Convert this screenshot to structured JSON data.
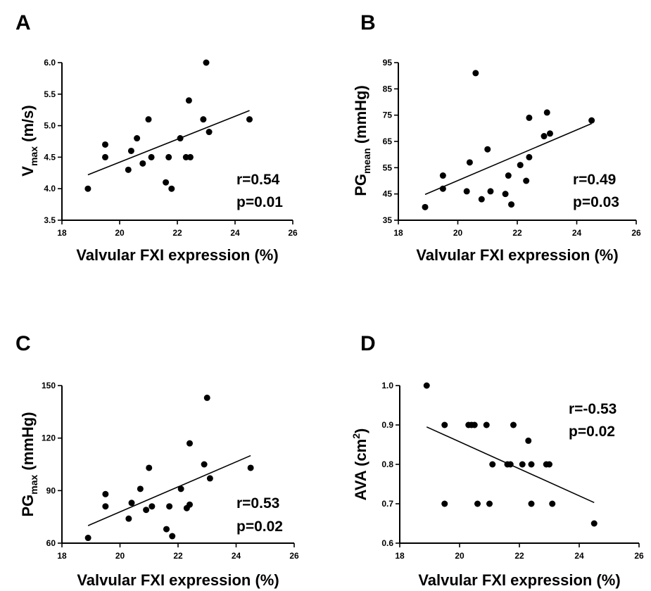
{
  "chart_data": [
    {
      "panel": "A",
      "type": "scatter",
      "xlabel": "Valvular FXI expression (%)",
      "ylabel_main": "V",
      "ylabel_sub": "max",
      "ylabel_sup": "",
      "ylabel_unit": " (m/s)",
      "xlim": [
        18,
        26
      ],
      "ylim": [
        3.5,
        6.0
      ],
      "xticks": [
        18,
        20,
        22,
        24,
        26
      ],
      "yticks": [
        3.5,
        4.0,
        4.5,
        5.0,
        5.5,
        6.0
      ],
      "ytick_labels": [
        "3.5",
        "4.0",
        "4.5",
        "5.0",
        "5.5",
        "6.0"
      ],
      "stat_r": "r=0.54",
      "stat_p": "p=0.01",
      "fit": {
        "x": [
          18.9,
          24.5
        ],
        "y": [
          4.22,
          5.24
        ]
      },
      "points": [
        {
          "x": 18.9,
          "y": 4.0
        },
        {
          "x": 19.5,
          "y": 4.7
        },
        {
          "x": 19.5,
          "y": 4.5
        },
        {
          "x": 20.3,
          "y": 4.3
        },
        {
          "x": 20.4,
          "y": 4.6
        },
        {
          "x": 20.6,
          "y": 4.8
        },
        {
          "x": 20.8,
          "y": 4.4
        },
        {
          "x": 21.0,
          "y": 5.1
        },
        {
          "x": 21.1,
          "y": 4.5
        },
        {
          "x": 21.6,
          "y": 4.1
        },
        {
          "x": 21.7,
          "y": 4.5
        },
        {
          "x": 21.8,
          "y": 4.0
        },
        {
          "x": 22.1,
          "y": 4.8
        },
        {
          "x": 22.3,
          "y": 4.5
        },
        {
          "x": 22.4,
          "y": 5.4
        },
        {
          "x": 22.45,
          "y": 4.5
        },
        {
          "x": 22.9,
          "y": 5.1
        },
        {
          "x": 23.0,
          "y": 6.0
        },
        {
          "x": 23.1,
          "y": 4.9
        },
        {
          "x": 24.5,
          "y": 5.1
        }
      ]
    },
    {
      "panel": "B",
      "type": "scatter",
      "xlabel": "Valvular FXI expression (%)",
      "ylabel_main": "PG",
      "ylabel_sub": "mean",
      "ylabel_sup": "",
      "ylabel_unit": " (mmHg)",
      "xlim": [
        18,
        26
      ],
      "ylim": [
        35,
        95
      ],
      "xticks": [
        18,
        20,
        22,
        24,
        26
      ],
      "yticks": [
        35,
        45,
        55,
        65,
        75,
        85,
        95
      ],
      "ytick_labels": [
        "35",
        "45",
        "55",
        "65",
        "75",
        "85",
        "95"
      ],
      "stat_r": "r=0.49",
      "stat_p": "p=0.03",
      "fit": {
        "x": [
          18.9,
          24.5
        ],
        "y": [
          44.8,
          71.8
        ]
      },
      "points": [
        {
          "x": 18.9,
          "y": 40
        },
        {
          "x": 19.5,
          "y": 52
        },
        {
          "x": 19.5,
          "y": 47
        },
        {
          "x": 20.3,
          "y": 46
        },
        {
          "x": 20.4,
          "y": 57
        },
        {
          "x": 20.6,
          "y": 91
        },
        {
          "x": 20.8,
          "y": 43
        },
        {
          "x": 21.0,
          "y": 62
        },
        {
          "x": 21.1,
          "y": 46
        },
        {
          "x": 21.6,
          "y": 45
        },
        {
          "x": 21.7,
          "y": 52
        },
        {
          "x": 21.8,
          "y": 41
        },
        {
          "x": 22.1,
          "y": 56
        },
        {
          "x": 22.3,
          "y": 50
        },
        {
          "x": 22.4,
          "y": 74
        },
        {
          "x": 22.4,
          "y": 59
        },
        {
          "x": 22.9,
          "y": 67
        },
        {
          "x": 23.0,
          "y": 76
        },
        {
          "x": 23.1,
          "y": 68
        },
        {
          "x": 24.5,
          "y": 73
        }
      ]
    },
    {
      "panel": "C",
      "type": "scatter",
      "xlabel": "Valvular FXI expression (%)",
      "ylabel_main": "PG",
      "ylabel_sub": "max",
      "ylabel_sup": "",
      "ylabel_unit": " (mmHg)",
      "xlim": [
        18,
        26
      ],
      "ylim": [
        60,
        150
      ],
      "xticks": [
        18,
        20,
        22,
        24,
        26
      ],
      "yticks": [
        60,
        90,
        120,
        150
      ],
      "ytick_labels": [
        "60",
        "90",
        "120",
        "150"
      ],
      "stat_r": "r=0.53",
      "stat_p": "p=0.02",
      "fit": {
        "x": [
          18.9,
          24.5
        ],
        "y": [
          70,
          110
        ]
      },
      "points": [
        {
          "x": 18.9,
          "y": 63
        },
        {
          "x": 19.5,
          "y": 88
        },
        {
          "x": 19.5,
          "y": 81
        },
        {
          "x": 20.3,
          "y": 74
        },
        {
          "x": 20.4,
          "y": 83
        },
        {
          "x": 20.7,
          "y": 91
        },
        {
          "x": 20.9,
          "y": 79
        },
        {
          "x": 21.0,
          "y": 103
        },
        {
          "x": 21.1,
          "y": 81
        },
        {
          "x": 21.6,
          "y": 68
        },
        {
          "x": 21.7,
          "y": 81
        },
        {
          "x": 21.8,
          "y": 64
        },
        {
          "x": 22.1,
          "y": 91
        },
        {
          "x": 22.3,
          "y": 80
        },
        {
          "x": 22.4,
          "y": 117
        },
        {
          "x": 22.4,
          "y": 82
        },
        {
          "x": 22.9,
          "y": 105
        },
        {
          "x": 23.0,
          "y": 143
        },
        {
          "x": 23.1,
          "y": 97
        },
        {
          "x": 24.5,
          "y": 103
        }
      ]
    },
    {
      "panel": "D",
      "type": "scatter",
      "xlabel": "Valvular FXI expression (%)",
      "ylabel_main": "AVA",
      "ylabel_sub": "",
      "ylabel_sup": "2",
      "ylabel_unit": " (cm",
      "ylabel_close": ")",
      "xlim": [
        18,
        26
      ],
      "ylim": [
        0.6,
        1.0
      ],
      "xticks": [
        18,
        20,
        22,
        24,
        26
      ],
      "yticks": [
        0.6,
        0.7,
        0.8,
        0.9,
        1.0
      ],
      "ytick_labels": [
        "0.6",
        "0.7",
        "0.8",
        "0.9",
        "1.0"
      ],
      "stat_r": "r=-0.53",
      "stat_p": "p=0.02",
      "fit": {
        "x": [
          18.9,
          24.5
        ],
        "y": [
          0.895,
          0.703
        ]
      },
      "points": [
        {
          "x": 18.9,
          "y": 1.0
        },
        {
          "x": 19.5,
          "y": 0.9
        },
        {
          "x": 19.5,
          "y": 0.7
        },
        {
          "x": 20.3,
          "y": 0.9
        },
        {
          "x": 20.4,
          "y": 0.9
        },
        {
          "x": 20.5,
          "y": 0.9
        },
        {
          "x": 20.6,
          "y": 0.7
        },
        {
          "x": 20.9,
          "y": 0.9
        },
        {
          "x": 21.0,
          "y": 0.7
        },
        {
          "x": 21.1,
          "y": 0.8
        },
        {
          "x": 21.6,
          "y": 0.8
        },
        {
          "x": 21.7,
          "y": 0.8
        },
        {
          "x": 21.8,
          "y": 0.9
        },
        {
          "x": 22.1,
          "y": 0.8
        },
        {
          "x": 22.3,
          "y": 0.86
        },
        {
          "x": 22.4,
          "y": 0.8
        },
        {
          "x": 22.4,
          "y": 0.7
        },
        {
          "x": 22.9,
          "y": 0.8
        },
        {
          "x": 23.0,
          "y": 0.8
        },
        {
          "x": 23.1,
          "y": 0.7
        },
        {
          "x": 24.5,
          "y": 0.65
        }
      ]
    }
  ]
}
